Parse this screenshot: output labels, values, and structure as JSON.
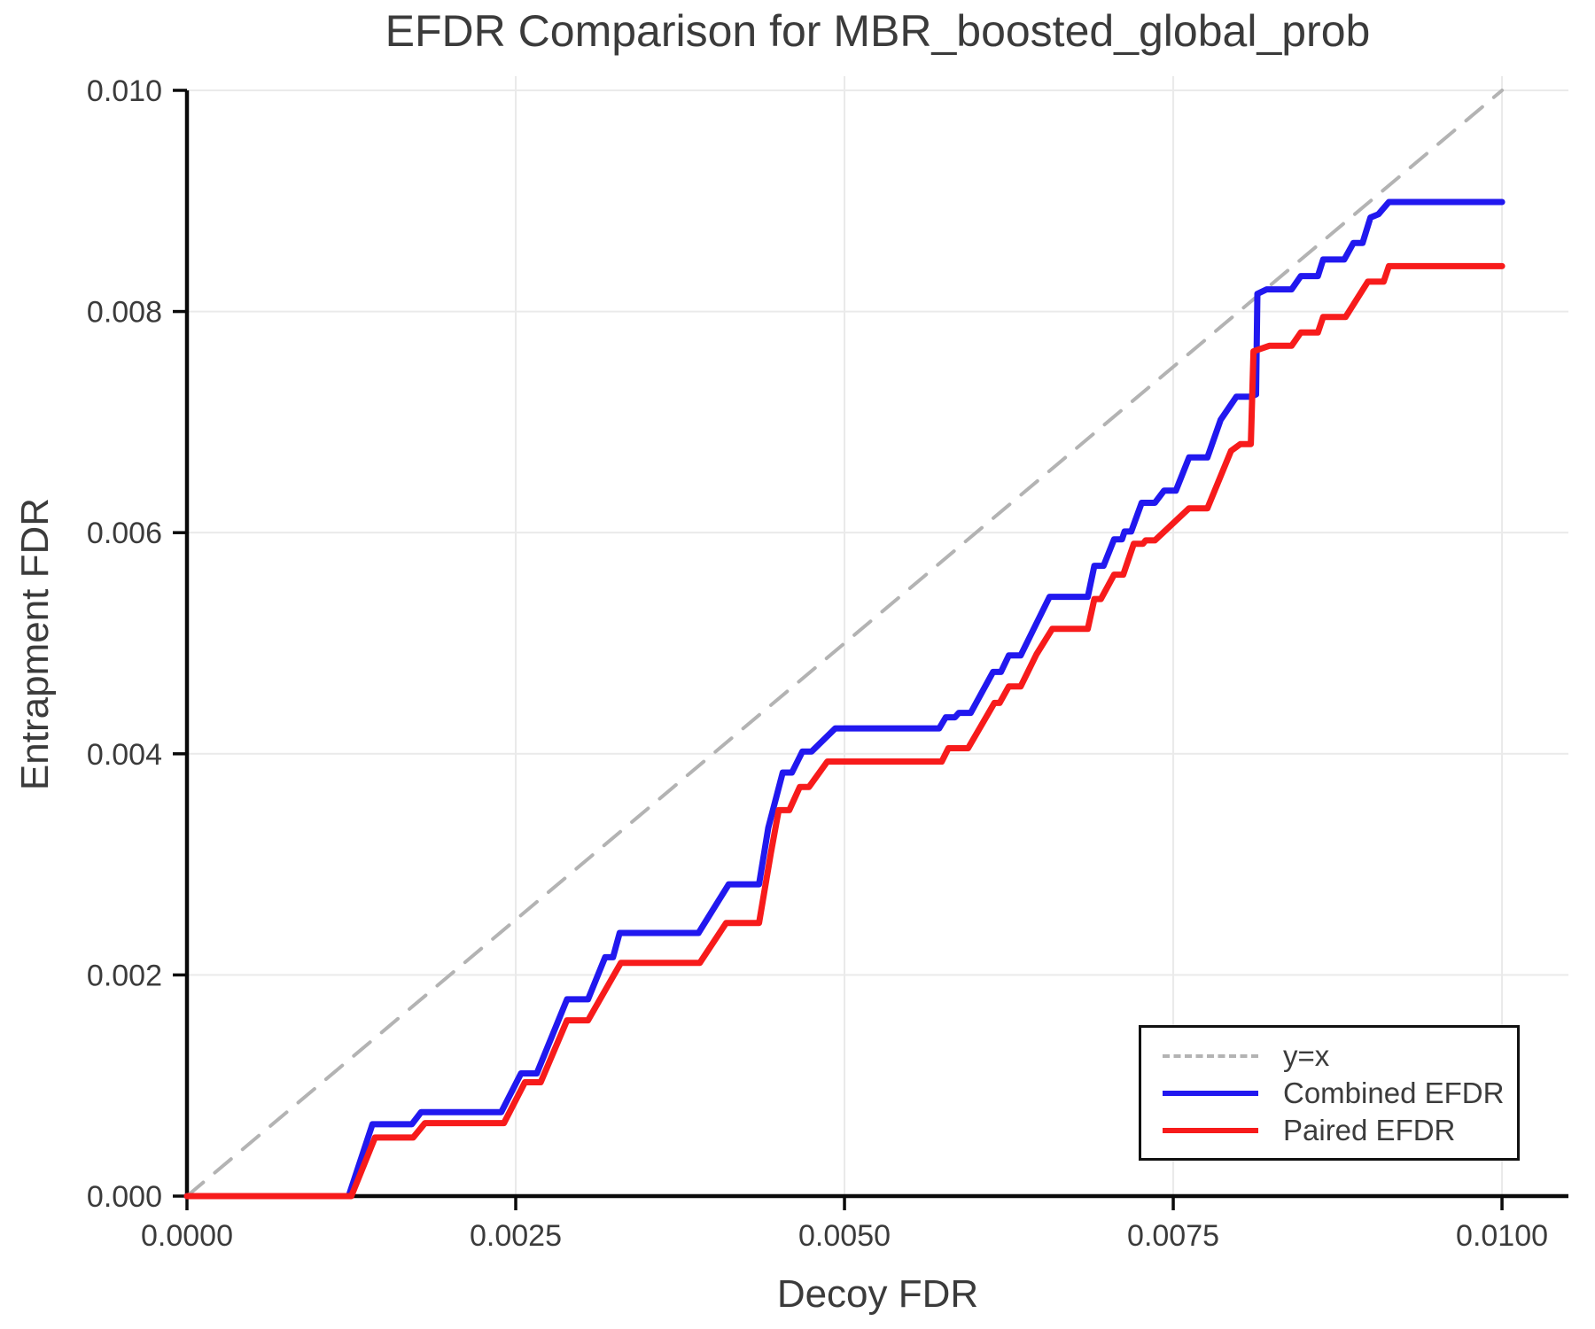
{
  "chart_data": {
    "type": "line",
    "title": "EFDR Comparison for MBR_boosted_global_prob",
    "xlabel": "Decoy FDR",
    "ylabel": "Entrapment FDR",
    "xlim": [
      0,
      0.010505
    ],
    "ylim": [
      0,
      0.010128
    ],
    "grid": true,
    "legend_position": "lower right",
    "axis_color": "#0a0a0a",
    "grid_color": "#eaeaea",
    "text_color": "#3b3b3b",
    "xticks": {
      "values": [
        0.0,
        0.0025,
        0.005,
        0.0075,
        0.01
      ],
      "labels": [
        "0.0000",
        "0.0025",
        "0.0050",
        "0.0075",
        "0.0100"
      ]
    },
    "yticks": {
      "values": [
        0.0,
        0.002,
        0.004,
        0.006,
        0.008,
        0.01
      ],
      "labels": [
        "0.000",
        "0.002",
        "0.004",
        "0.006",
        "0.008",
        "0.010"
      ]
    },
    "series": [
      {
        "name": "y=x",
        "style": "dashed",
        "color": "#b3b3b3",
        "width": 4,
        "points": [
          [
            0,
            0
          ],
          [
            0.01,
            0.01
          ]
        ]
      },
      {
        "name": "Combined EFDR",
        "style": "solid",
        "color": "#2118ef",
        "width": 7,
        "points": [
          [
            0.0,
            0.0
          ],
          [
            0.00123,
            0.0
          ],
          [
            0.00141,
            0.00065
          ],
          [
            0.00171,
            0.00065
          ],
          [
            0.00178,
            0.00076
          ],
          [
            0.00239,
            0.00076
          ],
          [
            0.00254,
            0.00111
          ],
          [
            0.00266,
            0.00111
          ],
          [
            0.00289,
            0.00178
          ],
          [
            0.00305,
            0.00178
          ],
          [
            0.00318,
            0.00216
          ],
          [
            0.00324,
            0.00216
          ],
          [
            0.00329,
            0.00238
          ],
          [
            0.00389,
            0.00238
          ],
          [
            0.00412,
            0.00282
          ],
          [
            0.00435,
            0.00282
          ],
          [
            0.00442,
            0.00333
          ],
          [
            0.00453,
            0.00383
          ],
          [
            0.0046,
            0.00383
          ],
          [
            0.00468,
            0.00402
          ],
          [
            0.00475,
            0.00402
          ],
          [
            0.00493,
            0.00423
          ],
          [
            0.00572,
            0.00423
          ],
          [
            0.00577,
            0.00433
          ],
          [
            0.00584,
            0.00433
          ],
          [
            0.00587,
            0.00437
          ],
          [
            0.00596,
            0.00437
          ],
          [
            0.00613,
            0.00474
          ],
          [
            0.00619,
            0.00474
          ],
          [
            0.00625,
            0.00489
          ],
          [
            0.00634,
            0.00489
          ],
          [
            0.00646,
            0.00518
          ],
          [
            0.00656,
            0.00542
          ],
          [
            0.00685,
            0.00542
          ],
          [
            0.0069,
            0.0057
          ],
          [
            0.00697,
            0.0057
          ],
          [
            0.00705,
            0.00594
          ],
          [
            0.00711,
            0.00594
          ],
          [
            0.00713,
            0.00601
          ],
          [
            0.00718,
            0.00601
          ],
          [
            0.00726,
            0.00627
          ],
          [
            0.00736,
            0.00627
          ],
          [
            0.00743,
            0.00638
          ],
          [
            0.00752,
            0.00638
          ],
          [
            0.00762,
            0.00668
          ],
          [
            0.00776,
            0.00668
          ],
          [
            0.00786,
            0.00702
          ],
          [
            0.00798,
            0.00723
          ],
          [
            0.00809,
            0.00723
          ],
          [
            0.00813,
            0.00725
          ],
          [
            0.00814,
            0.00816
          ],
          [
            0.00821,
            0.0082
          ],
          [
            0.0084,
            0.0082
          ],
          [
            0.00847,
            0.00832
          ],
          [
            0.0086,
            0.00832
          ],
          [
            0.00864,
            0.00847
          ],
          [
            0.0088,
            0.00847
          ],
          [
            0.00887,
            0.00862
          ],
          [
            0.00894,
            0.00862
          ],
          [
            0.009,
            0.00885
          ],
          [
            0.00906,
            0.00888
          ],
          [
            0.00914,
            0.00899
          ],
          [
            0.01,
            0.00899
          ]
        ]
      },
      {
        "name": "Paired EFDR",
        "style": "solid",
        "color": "#f71b1b",
        "width": 7,
        "points": [
          [
            0.0,
            0.0
          ],
          [
            0.00125,
            0.0
          ],
          [
            0.00143,
            0.00053
          ],
          [
            0.00172,
            0.00053
          ],
          [
            0.00181,
            0.00066
          ],
          [
            0.00241,
            0.00066
          ],
          [
            0.00257,
            0.00103
          ],
          [
            0.00269,
            0.00103
          ],
          [
            0.00289,
            0.00159
          ],
          [
            0.00305,
            0.00159
          ],
          [
            0.0033,
            0.00211
          ],
          [
            0.0039,
            0.00211
          ],
          [
            0.0041,
            0.00247
          ],
          [
            0.00435,
            0.00247
          ],
          [
            0.00444,
            0.0031
          ],
          [
            0.0045,
            0.00349
          ],
          [
            0.00458,
            0.00349
          ],
          [
            0.00466,
            0.0037
          ],
          [
            0.00473,
            0.0037
          ],
          [
            0.00487,
            0.00393
          ],
          [
            0.00574,
            0.00393
          ],
          [
            0.00579,
            0.00405
          ],
          [
            0.00594,
            0.00405
          ],
          [
            0.00614,
            0.00446
          ],
          [
            0.00618,
            0.00446
          ],
          [
            0.00625,
            0.00461
          ],
          [
            0.00634,
            0.00461
          ],
          [
            0.00646,
            0.0049
          ],
          [
            0.00658,
            0.00513
          ],
          [
            0.00685,
            0.00513
          ],
          [
            0.0069,
            0.0054
          ],
          [
            0.00695,
            0.0054
          ],
          [
            0.00705,
            0.00562
          ],
          [
            0.00712,
            0.00562
          ],
          [
            0.0072,
            0.0059
          ],
          [
            0.00727,
            0.0059
          ],
          [
            0.00729,
            0.00593
          ],
          [
            0.00736,
            0.00593
          ],
          [
            0.00762,
            0.00622
          ],
          [
            0.00776,
            0.00622
          ],
          [
            0.00794,
            0.00674
          ],
          [
            0.00801,
            0.0068
          ],
          [
            0.00809,
            0.0068
          ],
          [
            0.00811,
            0.00764
          ],
          [
            0.00823,
            0.00769
          ],
          [
            0.0084,
            0.00769
          ],
          [
            0.00847,
            0.00781
          ],
          [
            0.0086,
            0.00781
          ],
          [
            0.00864,
            0.00795
          ],
          [
            0.00881,
            0.00795
          ],
          [
            0.00898,
            0.00827
          ],
          [
            0.0091,
            0.00827
          ],
          [
            0.00914,
            0.00841
          ],
          [
            0.01,
            0.00841
          ]
        ]
      }
    ]
  }
}
